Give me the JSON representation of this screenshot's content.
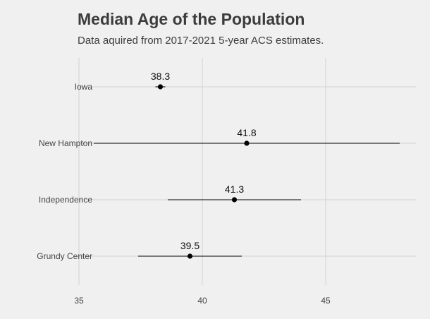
{
  "chart_data": {
    "type": "scatter",
    "title": "Median Age of the Population",
    "subtitle": "Data aquired from 2017-2021 5-year ACS estimates.",
    "xlabel": "",
    "ylabel": "",
    "xlim": [
      35,
      48.5
    ],
    "x_ticks": [
      35,
      40,
      45
    ],
    "grid": true,
    "categories": [
      "Iowa",
      "New Hampton",
      "Independence",
      "Grundy Center"
    ],
    "points": [
      {
        "category": "Iowa",
        "estimate": 38.3,
        "low": 38.1,
        "high": 38.5,
        "label": "38.3"
      },
      {
        "category": "New Hampton",
        "estimate": 41.8,
        "low": 35.6,
        "high": 48.0,
        "label": "41.8"
      },
      {
        "category": "Independence",
        "estimate": 41.3,
        "low": 38.6,
        "high": 44.0,
        "label": "41.3"
      },
      {
        "category": "Grundy Center",
        "estimate": 39.5,
        "low": 37.4,
        "high": 41.6,
        "label": "39.5"
      }
    ]
  }
}
